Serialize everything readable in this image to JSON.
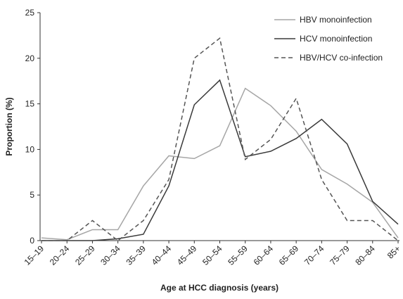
{
  "chart_data": {
    "type": "line",
    "x_label": "Age at HCC diagnosis (years)",
    "y_label": "Proportion (%)",
    "categories": [
      "15–19",
      "20–24",
      "25–29",
      "30–34",
      "35–39",
      "40–44",
      "45–49",
      "50–54",
      "55–59",
      "60–64",
      "65–69",
      "70–74",
      "75–79",
      "80–84",
      "85+"
    ],
    "series": [
      {
        "name": "HBV monoinfection",
        "color": "#a6a6a6",
        "dashed": false,
        "values": [
          0.3,
          0.1,
          1.2,
          1.2,
          6,
          9.3,
          9,
          10.4,
          16.7,
          14.8,
          12,
          7.8,
          6.2,
          4.2,
          0.3
        ]
      },
      {
        "name": "HCV monoinfection",
        "color": "#3a3a3a",
        "dashed": false,
        "values": [
          0,
          0,
          0,
          0.2,
          0.7,
          6,
          14.9,
          17.6,
          9.2,
          9.8,
          11.2,
          13.3,
          10.6,
          4.3,
          1.8
        ]
      },
      {
        "name": "HBV/HCV co-infection",
        "color": "#555555",
        "dashed": true,
        "values": [
          0,
          0,
          2.2,
          0,
          2.2,
          6.7,
          20,
          22.2,
          8.9,
          11.1,
          15.6,
          6.7,
          2.2,
          2.2,
          0
        ]
      }
    ],
    "ylim": [
      0,
      25
    ],
    "yticks": [
      0,
      5,
      10,
      15,
      20,
      25
    ],
    "grid": false,
    "legend": "top-right"
  }
}
